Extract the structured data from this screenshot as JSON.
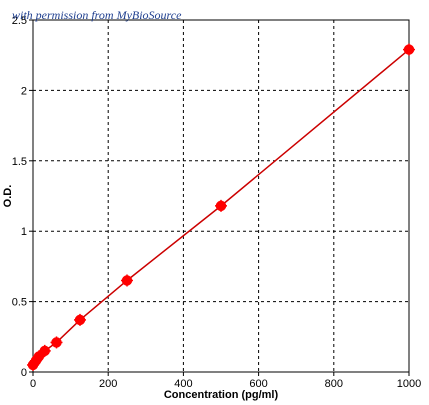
{
  "watermark": "with permission from MyBioSource",
  "chart_data": {
    "type": "scatter",
    "xlabel": "Concentration (pg/ml)",
    "ylabel": "O.D.",
    "xlim": [
      0,
      1000
    ],
    "ylim": [
      0,
      2.5
    ],
    "xticks": [
      0,
      200,
      400,
      600,
      800,
      1000
    ],
    "yticks": [
      0,
      0.5,
      1,
      1.5,
      2,
      2.5
    ],
    "xtick_labels": [
      "0",
      "200",
      "400",
      "600",
      "800",
      "1000"
    ],
    "ytick_labels": [
      "0",
      "0.5",
      "1",
      "1.5",
      "2",
      "2.5"
    ],
    "grid": true,
    "series": [
      {
        "color": "#ff0000",
        "line_color": "#cc0000",
        "x": [
          0,
          7.8,
          15.6,
          31.25,
          62.5,
          125,
          250,
          500,
          1000
        ],
        "y": [
          0.05,
          0.08,
          0.11,
          0.15,
          0.21,
          0.37,
          0.65,
          1.18,
          2.29
        ]
      }
    ]
  }
}
